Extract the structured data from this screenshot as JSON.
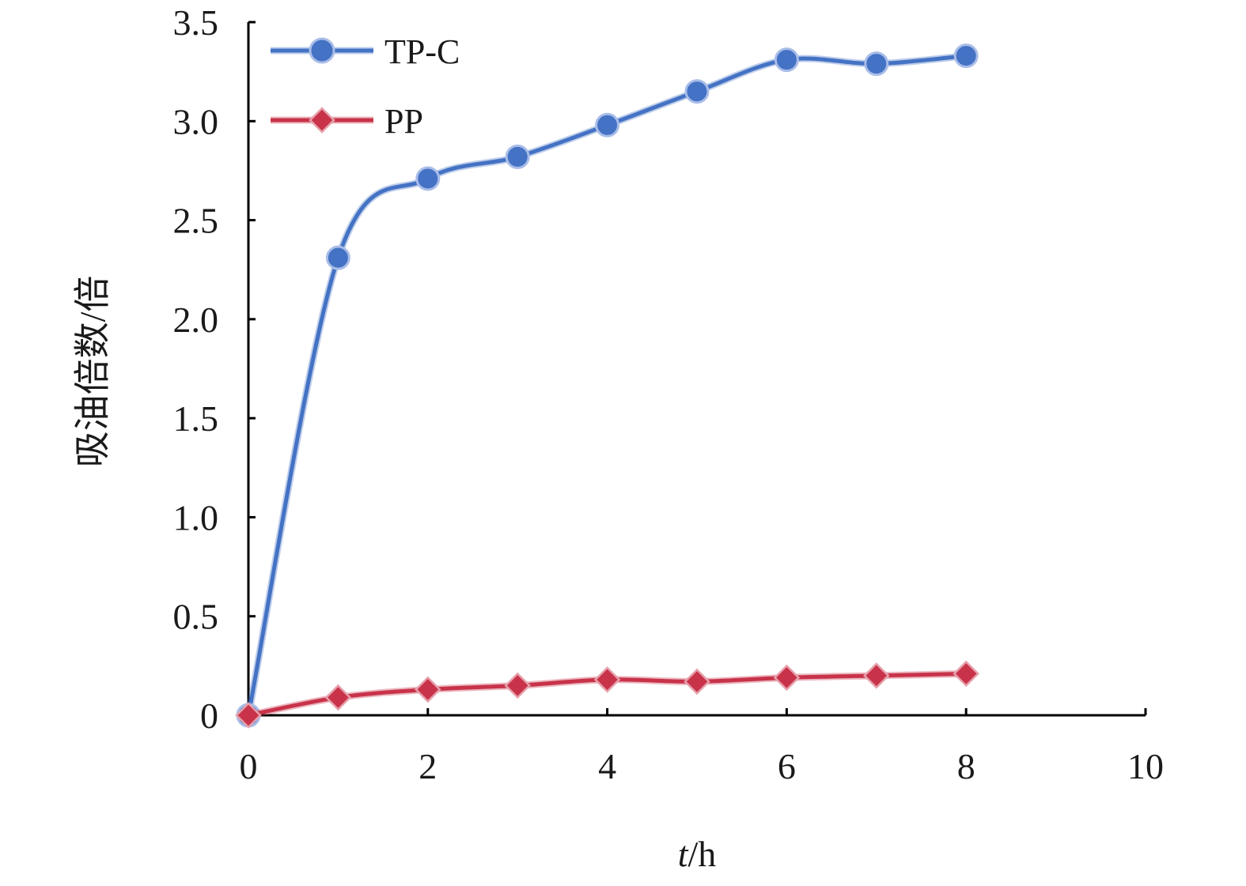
{
  "chart_data": {
    "type": "line",
    "xlabel_italic": "t",
    "xlabel_unit": "/h",
    "ylabel": "吸油倍数/倍",
    "xlim": [
      0,
      10
    ],
    "ylim": [
      0,
      3.5
    ],
    "x_ticks": [
      "0",
      "2",
      "4",
      "6",
      "8",
      "10"
    ],
    "y_ticks": [
      "0",
      "0.5",
      "1.0",
      "1.5",
      "2.0",
      "2.5",
      "3.0",
      "3.5"
    ],
    "grid": false,
    "legend_position": "top-left",
    "series": [
      {
        "name": "TP-C",
        "color": "#4472c4",
        "marker": "circle",
        "x": [
          0,
          1,
          2,
          3,
          4,
          5,
          6,
          7,
          8
        ],
        "y": [
          0,
          2.31,
          2.71,
          2.82,
          2.98,
          3.15,
          3.31,
          3.29,
          3.33
        ]
      },
      {
        "name": "PP",
        "color": "#c8334a",
        "marker": "diamond",
        "x": [
          0,
          1,
          2,
          3,
          4,
          5,
          6,
          7,
          8
        ],
        "y": [
          0,
          0.09,
          0.13,
          0.15,
          0.18,
          0.17,
          0.19,
          0.2,
          0.21
        ]
      }
    ]
  }
}
